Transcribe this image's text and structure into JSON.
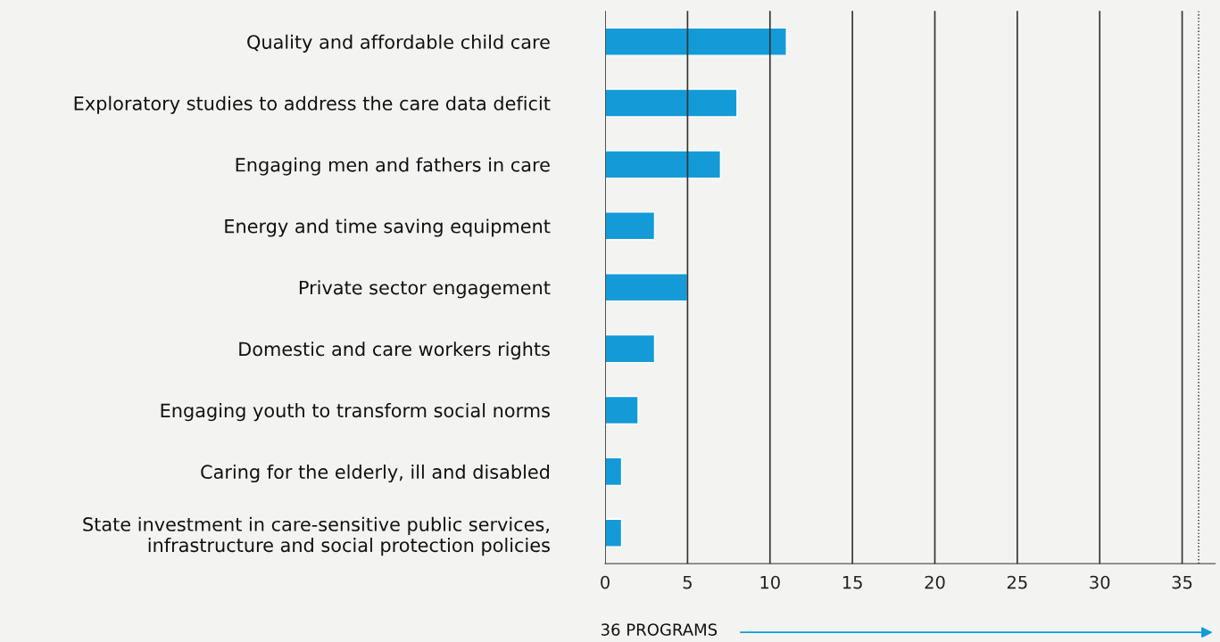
{
  "chart_data": {
    "type": "bar",
    "orientation": "horizontal",
    "categories": [
      "Quality and affordable child care",
      "Exploratory studies to address the care data deficit",
      "Engaging men and fathers in care",
      "Energy and time saving equipment",
      "Private sector engagement",
      "Domestic and care workers rights",
      "Engaging youth to transform social norms",
      "Caring for the elderly, ill and disabled",
      "State investment in care-sensitive public services,\ninfrastructure and social protection policies"
    ],
    "values": [
      11,
      8,
      7,
      3,
      5,
      3,
      2,
      1,
      1
    ],
    "color": "#149bd7",
    "xlim": [
      0,
      37
    ],
    "xticks": [
      0,
      5,
      10,
      15,
      20,
      25,
      30,
      35
    ],
    "grid": "x",
    "ref_lines": [
      {
        "axis": "x",
        "value": 36,
        "line_style": "dotted",
        "color": "#222222"
      }
    ],
    "annotations": [
      "36 PROGRAMS"
    ]
  }
}
